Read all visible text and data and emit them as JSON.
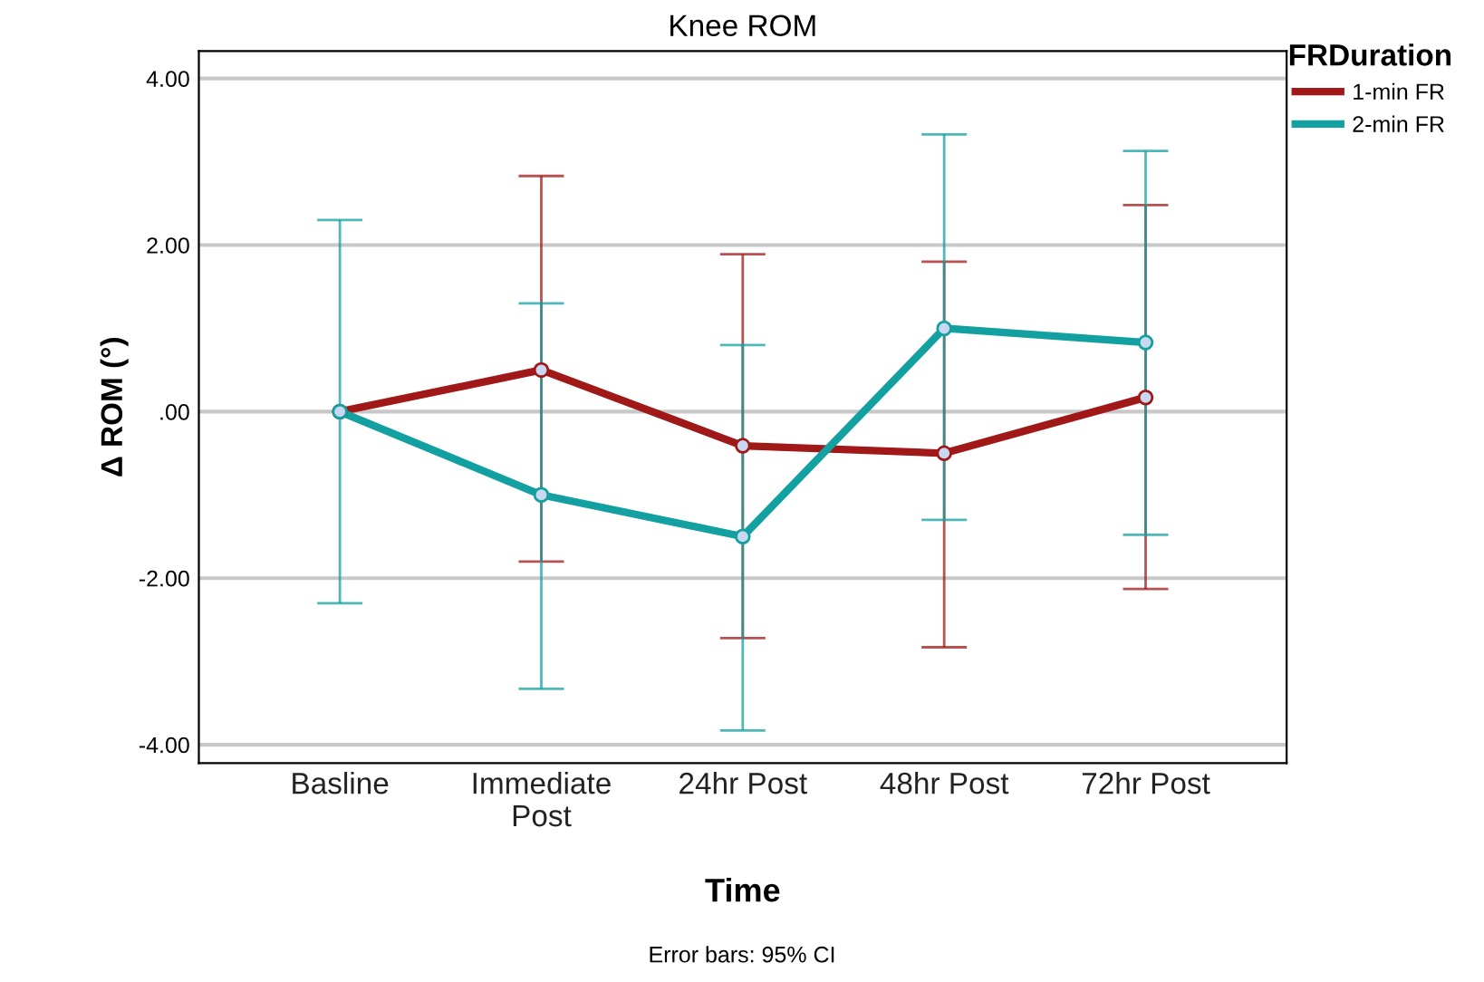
{
  "chart_data": {
    "type": "line",
    "title": "Knee ROM",
    "xlabel": "Time",
    "ylabel": "Δ ROM (°)",
    "legend_title": "FRDuration",
    "categories": [
      "Basline",
      "Immediate\nPost",
      "24hr Post",
      "48hr Post",
      "72hr Post"
    ],
    "series": [
      {
        "name": "1-min FR",
        "color": "#a01818",
        "values": [
          0,
          0.5,
          -0.41,
          -0.5,
          0.17
        ],
        "errors": [
          null,
          [
            -1.8,
            2.83
          ],
          [
            -2.72,
            1.89
          ],
          [
            -2.83,
            1.8
          ],
          [
            -2.13,
            2.48
          ]
        ]
      },
      {
        "name": "2-min FR",
        "color": "#13a0a0",
        "values": [
          0,
          -1.0,
          -1.5,
          1.0,
          0.83
        ],
        "errors": [
          2.3,
          [
            -3.33,
            1.3
          ],
          [
            -3.83,
            0.8
          ],
          [
            -1.3,
            3.33
          ],
          [
            -1.48,
            3.13
          ]
        ]
      }
    ],
    "ylim": [
      -4.22,
      4.33
    ],
    "yticks": [
      {
        "value": -4,
        "label": "-4.00"
      },
      {
        "value": -2,
        "label": "-2.00"
      },
      {
        "value": 0,
        "label": ".00"
      },
      {
        "value": 2,
        "label": "2.00"
      },
      {
        "value": 4,
        "label": "4.00"
      }
    ],
    "grid": "y",
    "legend": "top right",
    "marker": "circle",
    "line_style": "solid",
    "annotations": [
      "Error bars: 95% CI"
    ]
  }
}
